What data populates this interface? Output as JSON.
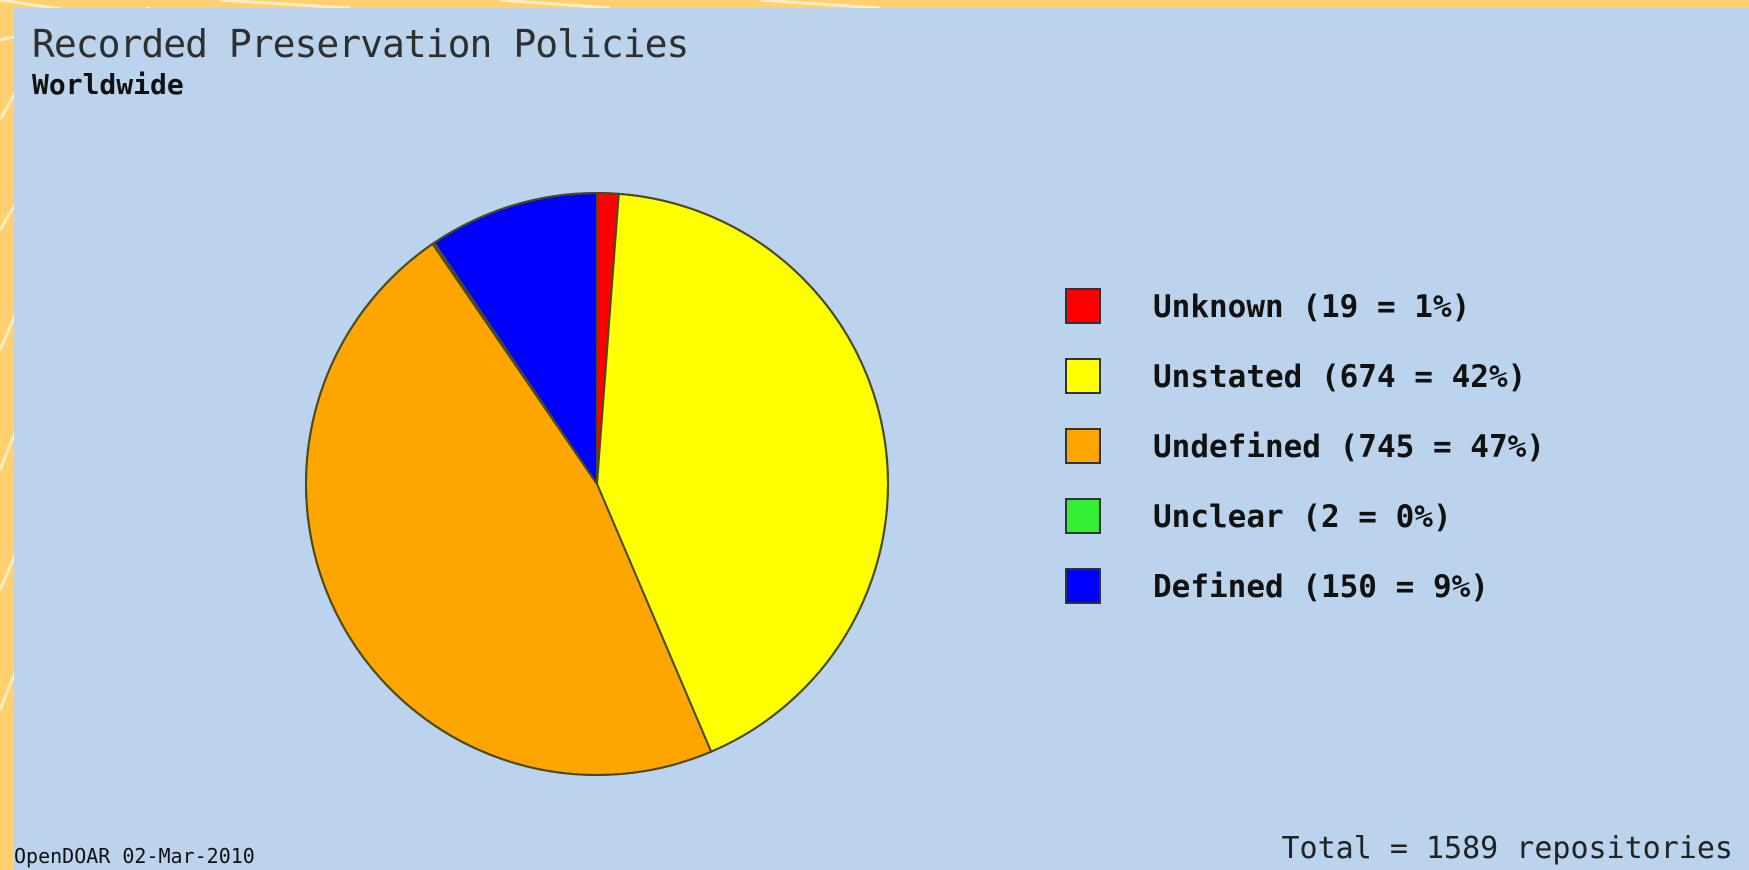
{
  "chart_data": {
    "type": "pie",
    "title": "Recorded Preservation Policies",
    "subtitle": "Worldwide",
    "series": [
      {
        "name": "Unknown",
        "value": 19,
        "percent": 1,
        "label": "Unknown (19 = 1%)",
        "color": "#ff0000"
      },
      {
        "name": "Unstated",
        "value": 674,
        "percent": 42,
        "label": "Unstated (674 = 42%)",
        "color": "#ffff00"
      },
      {
        "name": "Undefined",
        "value": 745,
        "percent": 47,
        "label": "Undefined (745 = 47%)",
        "color": "#ffa500"
      },
      {
        "name": "Unclear",
        "value": 2,
        "percent": 0,
        "label": "Unclear (2 = 0%)",
        "color": "#33ee33"
      },
      {
        "name": "Defined",
        "value": 150,
        "percent": 9,
        "label": "Defined (150 = 9%)",
        "color": "#0000ff"
      }
    ],
    "total": 1589,
    "legend_position": "right"
  },
  "footer": {
    "source": "OpenDOAR 02-Mar-2010",
    "total": "Total = 1589 repositories"
  }
}
